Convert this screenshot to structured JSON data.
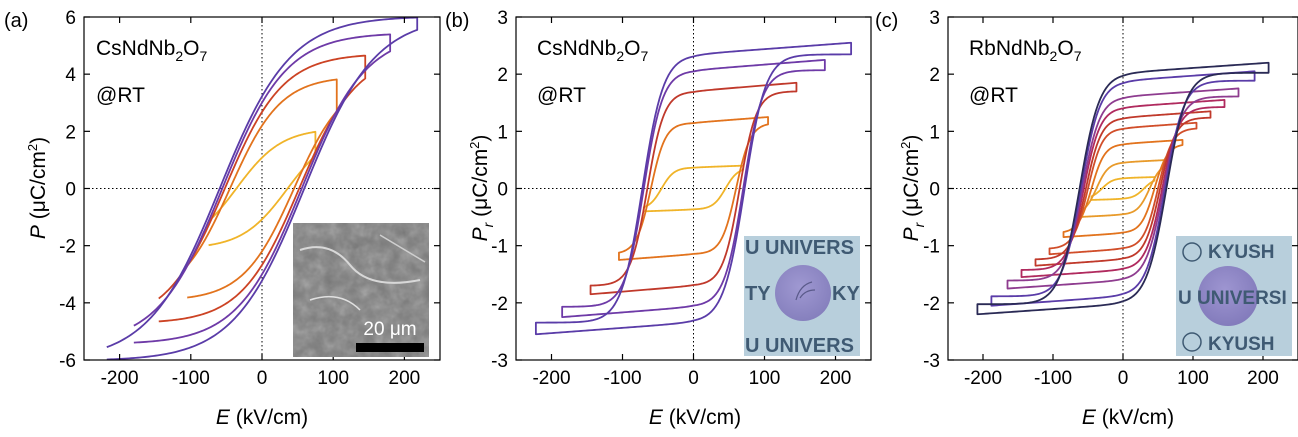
{
  "figure": {
    "panels": [
      {
        "label": "(a)",
        "sample_name": "CsNdNb",
        "sample_sub1": "2",
        "sample_mid": "O",
        "sample_sub2": "7",
        "condition": "@RT",
        "ylabel_var": "P",
        "ylabel_sub": "",
        "ylabel_unit": " (μC/cm",
        "ylabel_sup": "2",
        "ylabel_close": ")",
        "xlabel_var": "E",
        "xlabel_unit": " (kV/cm)",
        "inset": {
          "type": "SEM micrograph",
          "scale_label": "20 μm"
        }
      },
      {
        "label": "(b)",
        "sample_name": "CsNdNb",
        "sample_sub1": "2",
        "sample_mid": "O",
        "sample_sub2": "7",
        "condition": "@RT",
        "ylabel_var": "P",
        "ylabel_sub": "r",
        "ylabel_unit": " (μC/cm",
        "ylabel_sup": "2",
        "ylabel_close": ")",
        "xlabel_var": "E",
        "xlabel_unit": " (kV/cm)",
        "inset": {
          "type": "transparency photo",
          "text_lines": [
            "U UNIVERS",
            "TY",
            "KY",
            "U UNIVERS"
          ]
        }
      },
      {
        "label": "(c)",
        "sample_name": "RbNdNb",
        "sample_sub1": "2",
        "sample_mid": "O",
        "sample_sub2": "7",
        "condition": "@RT",
        "ylabel_var": "P",
        "ylabel_sub": "r",
        "ylabel_unit": " (μC/cm",
        "ylabel_sup": "2",
        "ylabel_close": ")",
        "xlabel_var": "E",
        "xlabel_unit": " (kV/cm)",
        "inset": {
          "type": "transparency photo",
          "text_lines": [
            "KYUSH",
            "U UNIVERSI",
            "KYUSH"
          ]
        }
      }
    ]
  },
  "chart_data": [
    {
      "type": "line",
      "subtype": "P-E hysteresis loops",
      "xlabel": "E (kV/cm)",
      "ylabel": "P (μC/cm2)",
      "xlim": [
        -250,
        250
      ],
      "ylim": [
        -6,
        6
      ],
      "xticks": [
        -200,
        -100,
        0,
        100,
        200
      ],
      "yticks": [
        -6,
        -4,
        -2,
        0,
        2,
        4,
        6
      ],
      "zero_lines": "dotted",
      "series": [
        {
          "Emax": 75,
          "Pmax": 1.15,
          "Pr": 0.45,
          "Ec": 40,
          "color": "#f0b429"
        },
        {
          "Emax": 105,
          "Pmax": 2.7,
          "Pr": 1.1,
          "Ec": 50,
          "color": "#e2731d"
        },
        {
          "Emax": 145,
          "Pmax": 3.85,
          "Pr": 1.9,
          "Ec": 58,
          "color": "#cc4324"
        },
        {
          "Emax": 180,
          "Pmax": 4.8,
          "Pr": 2.5,
          "Ec": 62,
          "color": "#6e3aa7"
        },
        {
          "Emax": 218,
          "Pmax": 5.55,
          "Pr": 2.95,
          "Ec": 66,
          "color": "#5a3ca8"
        }
      ]
    },
    {
      "type": "line",
      "subtype": "PUND remanent polarization loops",
      "xlabel": "E (kV/cm)",
      "ylabel": "Pr (μC/cm2)",
      "xlim": [
        -250,
        250
      ],
      "ylim": [
        -3,
        3
      ],
      "xticks": [
        -200,
        -100,
        0,
        100,
        200
      ],
      "yticks": [
        -3,
        -2,
        -1,
        0,
        1,
        2,
        3
      ],
      "zero_lines": "dotted",
      "series": [
        {
          "Emax": 70,
          "Pmax": 0.4,
          "Ec": 45,
          "color": "#f0b429"
        },
        {
          "Emax": 105,
          "Pmax": 1.25,
          "Ec": 60,
          "color": "#e2731d"
        },
        {
          "Emax": 145,
          "Pmax": 1.85,
          "Ec": 65,
          "color": "#c0392b"
        },
        {
          "Emax": 185,
          "Pmax": 2.25,
          "Ec": 70,
          "color": "#6e3aa7"
        },
        {
          "Emax": 222,
          "Pmax": 2.55,
          "Ec": 72,
          "color": "#5a3ca8"
        }
      ]
    },
    {
      "type": "line",
      "subtype": "PUND remanent polarization loops",
      "xlabel": "E (kV/cm)",
      "ylabel": "Pr (μC/cm2)",
      "xlim": [
        -250,
        250
      ],
      "ylim": [
        -3,
        3
      ],
      "xticks": [
        -200,
        -100,
        0,
        100,
        200
      ],
      "yticks": [
        -3,
        -2,
        -1,
        0,
        1,
        2,
        3
      ],
      "zero_lines": "dotted",
      "series": [
        {
          "Emax": 45,
          "Pmax": 0.2,
          "Ec": 30,
          "color": "#f0b429"
        },
        {
          "Emax": 65,
          "Pmax": 0.5,
          "Ec": 38,
          "color": "#e89a2a"
        },
        {
          "Emax": 85,
          "Pmax": 0.85,
          "Ec": 45,
          "color": "#e2731d"
        },
        {
          "Emax": 105,
          "Pmax": 1.15,
          "Ec": 50,
          "color": "#d14e2a"
        },
        {
          "Emax": 125,
          "Pmax": 1.35,
          "Ec": 53,
          "color": "#c0392b"
        },
        {
          "Emax": 145,
          "Pmax": 1.55,
          "Ec": 56,
          "color": "#b02a5e"
        },
        {
          "Emax": 165,
          "Pmax": 1.75,
          "Ec": 58,
          "color": "#8e3c8f"
        },
        {
          "Emax": 188,
          "Pmax": 2.05,
          "Ec": 60,
          "color": "#5a3ca8"
        },
        {
          "Emax": 208,
          "Pmax": 2.2,
          "Ec": 62,
          "color": "#2a2a55"
        }
      ]
    }
  ]
}
